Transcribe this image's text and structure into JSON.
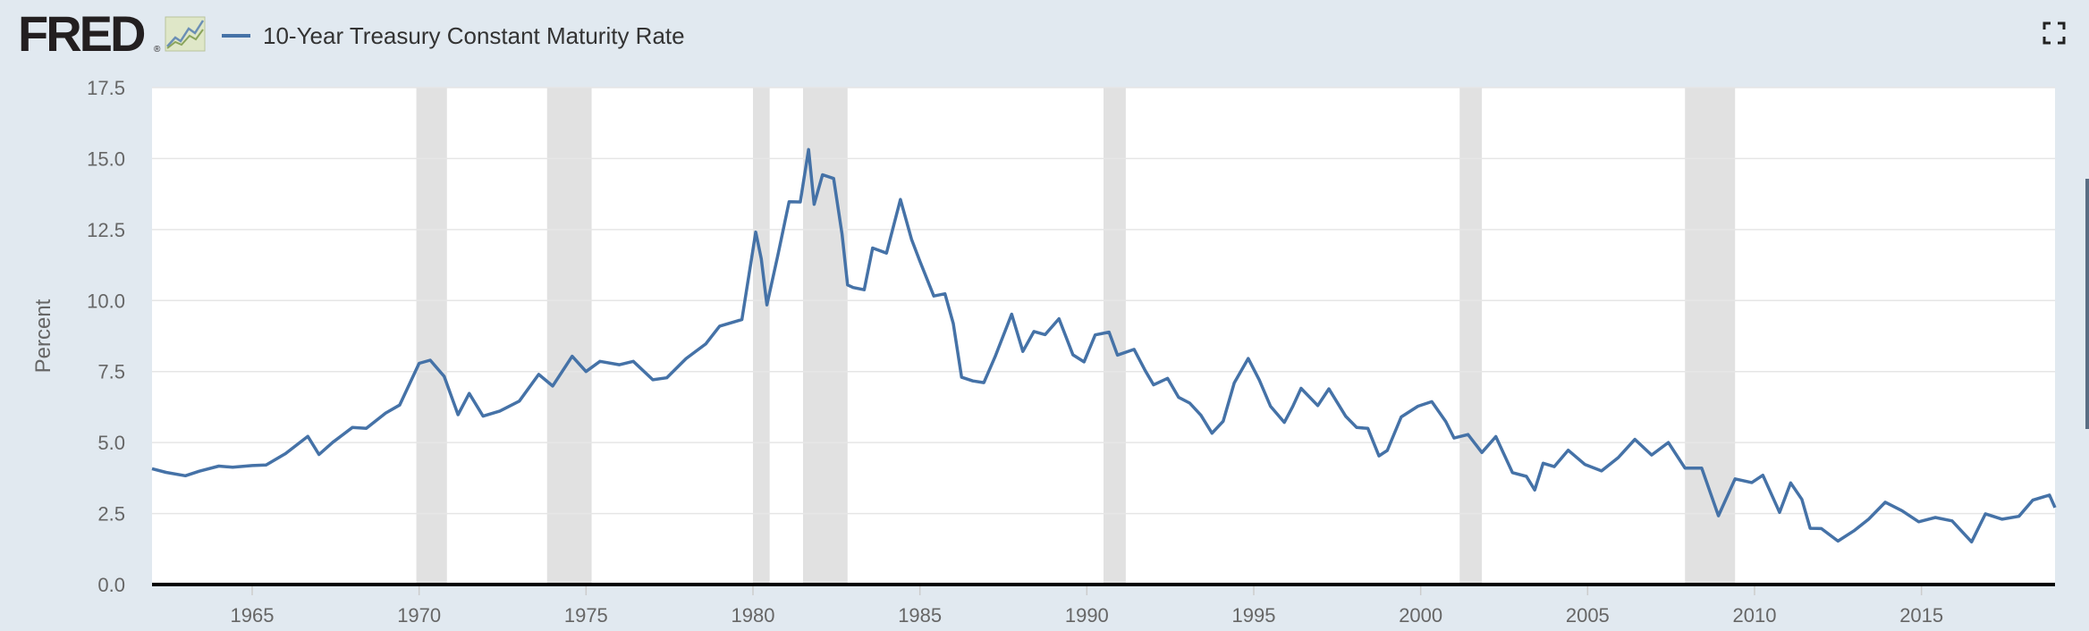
{
  "header": {
    "logo_text": "FRED",
    "logo_reg": "®",
    "legend_label": "10-Year Treasury Constant Maturity Rate"
  },
  "icons": {
    "logo_graph": "mini-line-chart-icon",
    "expand": "fullscreen-expand-icon"
  },
  "colors": {
    "series": "#4572a7",
    "recession": "#e1e1e1",
    "background": "#e1e9f0",
    "plot_background": "#ffffff"
  },
  "chart_data": {
    "type": "line",
    "title": "",
    "xlabel": "",
    "ylabel": "Percent",
    "xlim": [
      1962,
      2019
    ],
    "ylim": [
      0,
      17.5
    ],
    "grid": true,
    "legend": "top-left",
    "x_ticks": [
      "1965",
      "1970",
      "1975",
      "1980",
      "1985",
      "1990",
      "1995",
      "2000",
      "2005",
      "2010",
      "2015"
    ],
    "y_ticks": [
      "0.0",
      "2.5",
      "5.0",
      "7.5",
      "10.0",
      "12.5",
      "15.0",
      "17.5"
    ],
    "recessions": [
      {
        "start": "1969-12",
        "end": "1970-11"
      },
      {
        "start": "1973-11",
        "end": "1975-03"
      },
      {
        "start": "1980-01",
        "end": "1980-07"
      },
      {
        "start": "1981-07",
        "end": "1982-11"
      },
      {
        "start": "1990-07",
        "end": "1991-03"
      },
      {
        "start": "2001-03",
        "end": "2001-11"
      },
      {
        "start": "2007-12",
        "end": "2009-06"
      }
    ],
    "series": [
      {
        "name": "10-Year Treasury Constant Maturity Rate",
        "x": [
          "1962-01",
          "1962-06",
          "1963-01",
          "1963-06",
          "1964-01",
          "1964-06",
          "1965-01",
          "1965-06",
          "1966-01",
          "1966-09",
          "1967-01",
          "1967-06",
          "1968-01",
          "1968-06",
          "1969-01",
          "1969-06",
          "1970-01",
          "1970-05",
          "1970-10",
          "1971-03",
          "1971-07",
          "1971-12",
          "1972-06",
          "1973-01",
          "1973-08",
          "1974-01",
          "1974-08",
          "1975-01",
          "1975-06",
          "1976-01",
          "1976-06",
          "1977-01",
          "1977-06",
          "1978-01",
          "1978-08",
          "1979-01",
          "1979-09",
          "1980-02",
          "1980-04",
          "1980-06",
          "1980-10",
          "1981-02",
          "1981-06",
          "1981-09",
          "1981-11",
          "1982-02",
          "1982-06",
          "1982-09",
          "1982-11",
          "1983-01",
          "1983-05",
          "1983-08",
          "1984-01",
          "1984-06",
          "1984-10",
          "1985-01",
          "1985-06",
          "1985-10",
          "1986-01",
          "1986-04",
          "1986-08",
          "1986-12",
          "1987-04",
          "1987-10",
          "1988-02",
          "1988-06",
          "1988-10",
          "1989-03",
          "1989-08",
          "1989-12",
          "1990-04",
          "1990-09",
          "1990-12",
          "1991-06",
          "1991-10",
          "1992-01",
          "1992-06",
          "1992-10",
          "1993-02",
          "1993-06",
          "1993-10",
          "1994-02",
          "1994-06",
          "1994-11",
          "1995-03",
          "1995-07",
          "1995-12",
          "1996-03",
          "1996-06",
          "1996-12",
          "1997-04",
          "1997-10",
          "1998-02",
          "1998-06",
          "1998-10",
          "1999-01",
          "1999-06",
          "1999-12",
          "2000-05",
          "2000-10",
          "2001-01",
          "2001-06",
          "2001-11",
          "2002-04",
          "2002-10",
          "2003-03",
          "2003-06",
          "2003-09",
          "2004-01",
          "2004-06",
          "2004-12",
          "2005-06",
          "2005-12",
          "2006-06",
          "2006-12",
          "2007-06",
          "2007-12",
          "2008-06",
          "2008-12",
          "2009-06",
          "2009-12",
          "2010-04",
          "2010-10",
          "2011-02",
          "2011-06",
          "2011-09",
          "2012-01",
          "2012-07",
          "2013-01",
          "2013-06",
          "2013-12",
          "2014-06",
          "2014-12",
          "2015-06",
          "2015-12",
          "2016-07",
          "2016-12",
          "2017-06",
          "2017-12",
          "2018-05",
          "2018-11",
          "2019-01"
        ],
        "values": [
          4.08,
          3.95,
          3.83,
          3.99,
          4.17,
          4.13,
          4.19,
          4.21,
          4.61,
          5.22,
          4.58,
          5.01,
          5.53,
          5.5,
          6.04,
          6.32,
          7.79,
          7.9,
          7.33,
          5.98,
          6.73,
          5.93,
          6.11,
          6.46,
          7.4,
          6.99,
          8.04,
          7.5,
          7.86,
          7.74,
          7.86,
          7.21,
          7.28,
          7.96,
          8.47,
          9.1,
          9.33,
          12.41,
          11.47,
          9.85,
          11.62,
          13.48,
          13.47,
          15.32,
          13.39,
          14.43,
          14.3,
          12.34,
          10.55,
          10.46,
          10.38,
          11.85,
          11.67,
          13.56,
          12.16,
          11.38,
          10.16,
          10.24,
          9.19,
          7.3,
          7.17,
          7.11,
          8.02,
          9.52,
          8.21,
          8.91,
          8.8,
          9.36,
          8.09,
          7.84,
          8.79,
          8.89,
          8.08,
          8.28,
          7.53,
          7.03,
          7.26,
          6.59,
          6.39,
          5.96,
          5.33,
          5.75,
          7.1,
          7.96,
          7.2,
          6.28,
          5.71,
          6.27,
          6.91,
          6.3,
          6.89,
          5.93,
          5.53,
          5.5,
          4.53,
          4.72,
          5.9,
          6.28,
          6.44,
          5.74,
          5.16,
          5.28,
          4.65,
          5.21,
          3.94,
          3.81,
          3.33,
          4.27,
          4.15,
          4.73,
          4.23,
          4.0,
          4.47,
          5.11,
          4.56,
          5.0,
          4.1,
          4.1,
          2.42,
          3.72,
          3.59,
          3.85,
          2.54,
          3.58,
          3.0,
          1.98,
          1.97,
          1.53,
          1.91,
          2.3,
          2.9,
          2.6,
          2.21,
          2.36,
          2.24,
          1.5,
          2.49,
          2.3,
          2.4,
          2.97,
          3.15,
          2.71
        ]
      }
    ]
  }
}
